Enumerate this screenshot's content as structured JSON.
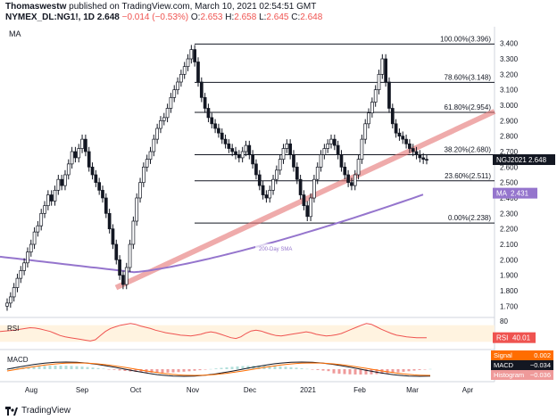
{
  "header": {
    "author": "Thomaswestw",
    "published": "published on TradingView.com, March 10, 2021 02:54:51 GMT",
    "symbol": "NYMEX_DL:NG1!, 1D",
    "last": "2.648",
    "change": "−0.014 (−0.53%)",
    "o_label": "O:",
    "o": "2.653",
    "h_label": "H:",
    "h": "2.658",
    "l_label": "L:",
    "l": "2.645",
    "c_label": "C:",
    "c": "2.648"
  },
  "indicator_label": "MA",
  "footer": {
    "brand": "TradingView"
  },
  "colors": {
    "up": "#ffffff",
    "down": "#131722",
    "ma": "#9575cd",
    "trend": "#e57373",
    "fib": "#131722",
    "rsi": "#ef5350",
    "macd": "#131722",
    "signal": "#ff6d00",
    "hist_pos": "#b2dfdb",
    "hist_neg": "#ef9a9a"
  },
  "chart_data": [
    {
      "type": "candlestick",
      "ylim": [
        1.65,
        3.45
      ],
      "y_ticks": [
        "3.400",
        "3.300",
        "3.200",
        "3.100",
        "3.000",
        "2.900",
        "2.800",
        "2.700",
        "2.600",
        "2.500",
        "2.400",
        "2.300",
        "2.200",
        "2.100",
        "2.000",
        "1.900",
        "1.800",
        "1.700"
      ],
      "x_ticks": [
        "Aug",
        "Sep",
        "Oct",
        "Nov",
        "Dec",
        "2021",
        "Feb",
        "Mar",
        "Apr"
      ],
      "fib_levels": [
        {
          "label": "100.00%(3.396)",
          "value": 3.396
        },
        {
          "label": "78.60%(3.148)",
          "value": 3.148
        },
        {
          "label": "61.80%(2.954)",
          "value": 2.954
        },
        {
          "label": "38.20%(2.680)",
          "value": 2.68
        },
        {
          "label": "23.60%(2.511)",
          "value": 2.511
        },
        {
          "label": "0.00%(2.238)",
          "value": 2.238
        }
      ],
      "price_tag": {
        "label": "NGJ2021",
        "value": "2.648"
      },
      "ma_tag": {
        "label": "MA",
        "value": "2.431"
      },
      "sma_label": "200-Day SMA",
      "closes": [
        1.72,
        1.76,
        1.82,
        1.88,
        1.93,
        1.98,
        2.05,
        2.1,
        2.18,
        2.22,
        2.3,
        2.35,
        2.42,
        2.38,
        2.45,
        2.52,
        2.48,
        2.55,
        2.62,
        2.7,
        2.66,
        2.72,
        2.78,
        2.7,
        2.6,
        2.55,
        2.5,
        2.45,
        2.4,
        2.3,
        2.2,
        2.1,
        2.0,
        1.9,
        1.84,
        1.95,
        2.1,
        2.25,
        2.4,
        2.5,
        2.6,
        2.65,
        2.7,
        2.78,
        2.85,
        2.9,
        2.92,
        2.98,
        3.05,
        3.1,
        3.15,
        3.2,
        3.25,
        3.3,
        3.36,
        3.28,
        3.15,
        3.05,
        2.98,
        2.92,
        2.88,
        2.85,
        2.82,
        2.78,
        2.75,
        2.72,
        2.7,
        2.68,
        2.66,
        2.7,
        2.74,
        2.68,
        2.62,
        2.55,
        2.48,
        2.42,
        2.4,
        2.45,
        2.52,
        2.58,
        2.65,
        2.72,
        2.75,
        2.68,
        2.6,
        2.52,
        2.42,
        2.35,
        2.28,
        2.4,
        2.52,
        2.6,
        2.68,
        2.72,
        2.75,
        2.78,
        2.74,
        2.68,
        2.6,
        2.55,
        2.5,
        2.48,
        2.55,
        2.65,
        2.78,
        2.88,
        2.95,
        3.02,
        3.1,
        3.2,
        3.3,
        3.15,
        2.98,
        2.88,
        2.82,
        2.8,
        2.78,
        2.75,
        2.72,
        2.7,
        2.68,
        2.66,
        2.65,
        2.648
      ],
      "rsi": {
        "label": "RSI",
        "value": "40.01",
        "ylim": [
          20,
          80
        ],
        "values": [
          55,
          56,
          57,
          58,
          60,
          62,
          64,
          63,
          61,
          58,
          55,
          50,
          45,
          42,
          40,
          38,
          36,
          34,
          32,
          35,
          45,
          55,
          62,
          66,
          70,
          72,
          74,
          72,
          68,
          65,
          62,
          58,
          55,
          52,
          50,
          48,
          46,
          45,
          44,
          46,
          48,
          52,
          54,
          52,
          48,
          44,
          40,
          38,
          42,
          50,
          56,
          58,
          56,
          52,
          48,
          45,
          44,
          46,
          48,
          50,
          52,
          54,
          52,
          48,
          46,
          44,
          45,
          47,
          50,
          55,
          60,
          65,
          70,
          74,
          72,
          66,
          60,
          55,
          50,
          46,
          44,
          42,
          41,
          40,
          40,
          40.01
        ]
      },
      "macd": {
        "label": "MACD",
        "signal_label": "Signal",
        "macd_label": "MACD",
        "histogram_label": "Histogram",
        "signal": "0.002",
        "macd": "−0.034",
        "histogram": "−0.036"
      }
    }
  ]
}
